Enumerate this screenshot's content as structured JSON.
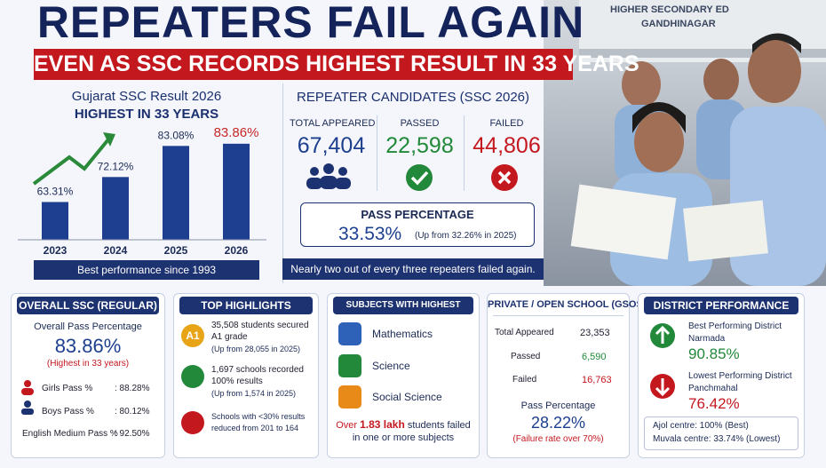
{
  "header": {
    "title": "REPEATERS FAIL AGAIN",
    "subtitle": "EVEN AS SSC RECORDS HIGHEST RESULT IN 33 YEARS"
  },
  "chart_data": {
    "type": "bar",
    "title": "Gujarat SSC Result 2026",
    "subtitle": "HIGHEST IN 33 YEARS",
    "categories": [
      "2023",
      "2024",
      "2025",
      "2026"
    ],
    "values": [
      63.31,
      72.12,
      83.08,
      83.86
    ],
    "value_labels": [
      "63.31%",
      "72.12%",
      "83.08%",
      "83.86%"
    ],
    "color": "#1e3f8f",
    "highlight": {
      "index": 3,
      "color": "#c62828"
    },
    "ylim": [
      50,
      86
    ],
    "footer": "Best performance since 1993"
  },
  "repeaters": {
    "title": "REPEATER CANDIDATES (SSC 2026)",
    "stats": [
      {
        "label": "TOTAL APPEARED",
        "value": "67,404"
      },
      {
        "label": "PASSED",
        "value": "22,598"
      },
      {
        "label": "FAILED",
        "value": "44,806"
      }
    ],
    "pass": {
      "label": "PASS PERCENTAGE",
      "value": "33.53%",
      "note": "(Up from 32.26% in 2025)"
    },
    "banner": "Nearly two out of every three repeaters failed again."
  },
  "overall": {
    "title": "OVERALL SSC (REGULAR)",
    "label": "Overall Pass Percentage",
    "value": "83.86%",
    "note": "(Highest in 33 years)",
    "rows": [
      {
        "label": "Girls Pass %",
        "value": ": 88.28%"
      },
      {
        "label": "Boys Pass %",
        "value": ": 80.12%"
      },
      {
        "label": "English Medium Pass %",
        "value": ": 92.50%"
      }
    ]
  },
  "highlights": {
    "title": "TOP HIGHLIGHTS",
    "items": [
      {
        "icon": "A1",
        "lines": [
          "35,508 students secured",
          "A1 grade",
          "(Up from 28,055 in 2025)"
        ]
      },
      {
        "lines": [
          "1,697 schools recorded",
          "100% results",
          "(Up from 1,574 in 2025)"
        ]
      },
      {
        "lines": [
          "Schools with <30% results",
          "reduced from 201 to 164"
        ]
      }
    ]
  },
  "subjects": {
    "title": "SUBJECTS WITH HIGHEST FAILURES",
    "items": [
      "Mathematics",
      "Science",
      "Social Science"
    ],
    "note": {
      "lead": "Over",
      "strong": "1.83 lakh",
      "rest": "students failed",
      "line2": "in one or more subjects"
    }
  },
  "gsos": {
    "title": "PRIVATE / OPEN SCHOOL (GSOS)",
    "rows": [
      {
        "label": "Total Appeared",
        "value": "23,353"
      },
      {
        "label": "Passed",
        "value": "6,590"
      },
      {
        "label": "Failed",
        "value": "16,763"
      }
    ],
    "label": "Pass Percentage",
    "value": "28.22%",
    "note": "(Failure rate over 70%)"
  },
  "district": {
    "title": "DISTRICT PERFORMANCE",
    "best": {
      "label": "Best Performing District",
      "name": "Narmada",
      "value": "90.85%"
    },
    "worst": {
      "label": "Lowest Performing District",
      "name": "Panchmahal",
      "value": "76.42%"
    },
    "notes": [
      "Ajol centre: 100% (Best)",
      "Muvala centre: 33.74% (Lowest)"
    ]
  },
  "photo": {
    "sign": [
      "HIGHER SECONDARY ED",
      "GANDHINAGAR"
    ]
  }
}
